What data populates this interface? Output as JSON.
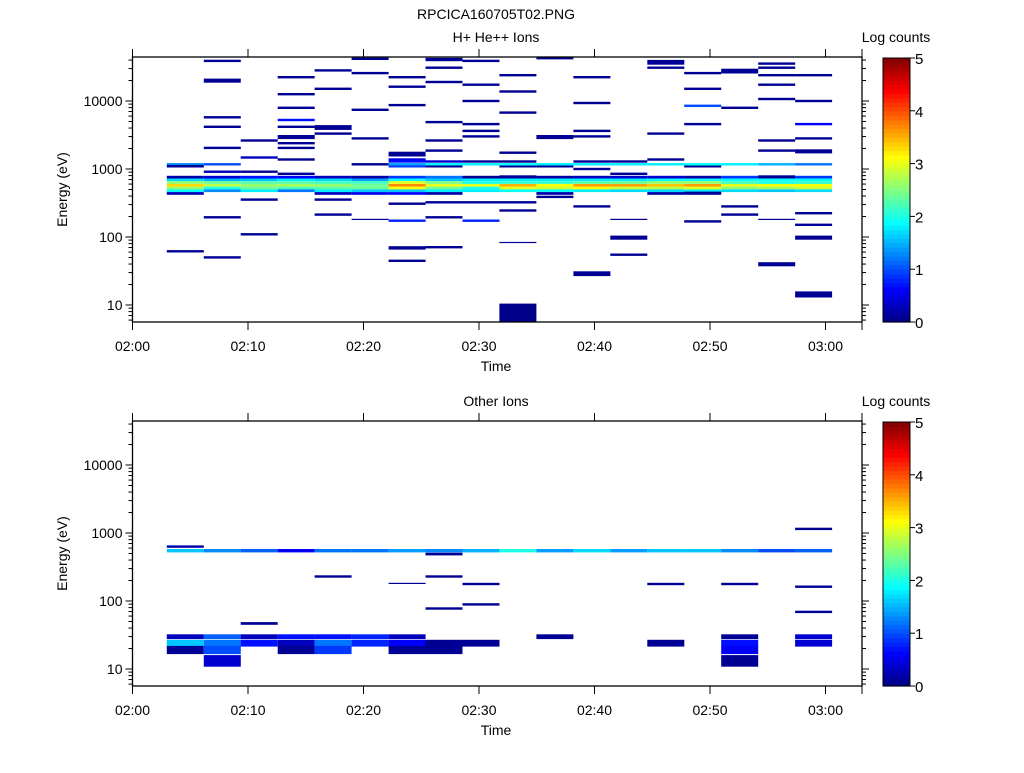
{
  "title": "RPCICA160705T02.PNG",
  "colormap": "jet",
  "chart_data": [
    {
      "type": "heatmap",
      "title": "H+ He++ Ions",
      "xlabel": "Time",
      "ylabel": "Energy (eV)",
      "colorbar_label": "Log counts",
      "colorbar_range": [
        0,
        5
      ],
      "colorbar_ticks": [
        "0",
        "1",
        "2",
        "3",
        "4",
        "5"
      ],
      "x_ticks": [
        "02:00",
        "02:10",
        "02:20",
        "02:30",
        "02:40",
        "02:50",
        "03:00"
      ],
      "y_ticks": [
        "10",
        "100",
        "1000",
        "10000"
      ],
      "y_scale": "log",
      "ylim_log10_eV": [
        0.75,
        4.65
      ],
      "xlim_minutes_after_0200": [
        0,
        63.2
      ],
      "time_bins": {
        "start_minute": 2.97,
        "width_minutes": 3.2,
        "count": 18
      },
      "band": {
        "log10_energy": [
          2.88,
          2.84,
          2.8,
          2.76,
          2.72,
          2.68,
          2.64
        ],
        "values_by_column": [
          [
            0.2,
            1.7,
            2.6,
            3.3,
            2.6,
            1.9,
            0.3
          ],
          [
            0.4,
            1.5,
            2.4,
            2.8,
            2.0,
            1.3,
            null
          ],
          [
            0.7,
            1.6,
            2.3,
            2.6,
            2.4,
            1.8,
            null
          ],
          [
            0.6,
            1.8,
            2.3,
            2.7,
            2.2,
            1.2,
            null
          ],
          [
            0.3,
            1.7,
            2.2,
            2.6,
            2.3,
            1.8,
            0.3
          ],
          [
            0.2,
            1.4,
            2.2,
            2.4,
            2.4,
            1.6,
            0.5
          ],
          [
            0.9,
            1.9,
            3.0,
            3.7,
            3.1,
            1.6,
            0.6
          ],
          [
            1.2,
            1.6,
            2.5,
            3.0,
            2.4,
            1.8,
            0.2
          ],
          [
            0.1,
            1.8,
            2.0,
            3.0,
            2.0,
            1.8,
            null
          ],
          [
            0.2,
            1.8,
            2.1,
            3.5,
            3.0,
            1.9,
            null
          ],
          [
            0.2,
            1.8,
            2.1,
            3.1,
            2.9,
            1.9,
            0.2
          ],
          [
            0.3,
            1.8,
            2.3,
            3.6,
            3.1,
            1.8,
            null
          ],
          [
            0.4,
            1.8,
            2.4,
            3.6,
            2.9,
            1.7,
            null
          ],
          [
            0.4,
            1.9,
            2.6,
            3.4,
            2.8,
            1.7,
            0.2
          ],
          [
            0.2,
            1.9,
            2.6,
            3.6,
            3.0,
            1.8,
            0.2
          ],
          [
            0.9,
            1.9,
            2.2,
            3.0,
            2.6,
            1.7,
            null
          ],
          [
            0.2,
            1.9,
            2.0,
            3.1,
            2.7,
            1.6,
            null
          ],
          [
            0.9,
            1.9,
            2.1,
            3.1,
            2.9,
            1.7,
            null
          ]
        ]
      },
      "cells_col_log10E_value_width": [
        [
          0,
          3.07,
          1.3
        ],
        [
          0,
          3.04,
          0.1
        ],
        [
          0,
          1.79,
          0.1
        ],
        [
          1,
          4.59,
          0.1
        ],
        [
          1,
          4.3,
          0.1,
          0.06
        ],
        [
          1,
          3.76,
          0.1
        ],
        [
          1,
          3.62,
          0.1
        ],
        [
          1,
          3.31,
          0.1
        ],
        [
          1,
          3.07,
          1.0
        ],
        [
          1,
          2.96,
          0.3
        ],
        [
          1,
          2.29,
          0.1
        ],
        [
          1,
          1.7,
          0.1
        ],
        [
          2,
          3.42,
          0.1
        ],
        [
          2,
          3.17,
          0.3
        ],
        [
          2,
          2.96,
          0.1
        ],
        [
          2,
          2.55,
          0.1
        ],
        [
          2,
          2.04,
          0.1
        ],
        [
          3,
          4.35,
          0.1
        ],
        [
          3,
          4.1,
          0.1
        ],
        [
          3,
          3.9,
          0.1
        ],
        [
          3,
          3.72,
          0.7
        ],
        [
          3,
          3.62,
          0.1
        ],
        [
          3,
          3.47,
          0.1,
          0.06
        ],
        [
          3,
          3.38,
          0.1
        ],
        [
          3,
          3.31,
          0.1
        ],
        [
          3,
          3.14,
          0.1
        ],
        [
          3,
          2.93,
          0.1
        ],
        [
          4,
          4.45,
          0.1
        ],
        [
          4,
          4.18,
          0.1
        ],
        [
          4,
          3.61,
          0.1,
          0.07
        ],
        [
          4,
          3.52,
          0.1
        ],
        [
          4,
          2.55,
          0.1
        ],
        [
          4,
          2.33,
          0.1
        ],
        [
          5,
          4.62,
          0.1
        ],
        [
          5,
          4.41,
          0.1
        ],
        [
          5,
          3.87,
          0.1
        ],
        [
          5,
          3.45,
          0.1
        ],
        [
          5,
          3.07,
          0.1
        ],
        [
          5,
          2.26,
          0.1,
          0.015
        ],
        [
          6,
          4.35,
          0.1
        ],
        [
          6,
          4.21,
          0.1
        ],
        [
          6,
          3.94,
          0.1
        ],
        [
          6,
          3.22,
          0.1,
          0.07
        ],
        [
          6,
          3.14,
          0.5
        ],
        [
          6,
          3.11,
          0.7
        ],
        [
          6,
          3.04,
          0.9
        ],
        [
          6,
          2.49,
          0.1
        ],
        [
          6,
          2.24,
          0.8
        ],
        [
          6,
          1.84,
          0.1,
          0.05
        ],
        [
          6,
          1.65,
          0.1
        ],
        [
          7,
          4.61,
          0.1,
          0.05
        ],
        [
          7,
          4.49,
          0.1
        ],
        [
          7,
          4.28,
          0.1
        ],
        [
          7,
          3.69,
          0.1
        ],
        [
          7,
          3.42,
          0.1
        ],
        [
          7,
          3.27,
          0.1
        ],
        [
          7,
          3.11,
          0.4
        ],
        [
          7,
          3.04,
          0.1
        ],
        [
          7,
          2.51,
          0.1
        ],
        [
          7,
          2.29,
          0.1
        ],
        [
          7,
          1.85,
          0.1
        ],
        [
          8,
          4.59,
          0.1
        ],
        [
          8,
          4.24,
          0.1
        ],
        [
          8,
          4.0,
          0.1
        ],
        [
          8,
          3.66,
          0.1
        ],
        [
          8,
          3.56,
          0.1
        ],
        [
          8,
          3.48,
          0.1
        ],
        [
          8,
          3.11,
          0.1
        ],
        [
          8,
          2.51,
          0.1
        ],
        [
          8,
          2.24,
          0.8
        ],
        [
          9,
          4.38,
          0.1
        ],
        [
          9,
          4.14,
          0.1
        ],
        [
          9,
          3.83,
          0.1
        ],
        [
          9,
          3.24,
          0.1
        ],
        [
          9,
          3.11,
          0.1
        ],
        [
          9,
          3.04,
          0.1
        ],
        [
          9,
          2.89,
          0.1
        ],
        [
          9,
          2.51,
          0.1
        ],
        [
          9,
          2.39,
          0.1
        ],
        [
          9,
          1.92,
          0.1,
          0.015
        ],
        [
          9,
          0.885,
          0.05,
          0.27
        ],
        [
          10,
          4.63,
          0.1
        ],
        [
          10,
          3.47,
          0.1,
          0.06
        ],
        [
          10,
          3.04,
          0.1
        ],
        [
          10,
          2.59,
          0.1
        ],
        [
          11,
          4.35,
          0.1
        ],
        [
          11,
          3.97,
          0.1
        ],
        [
          11,
          3.56,
          0.1
        ],
        [
          11,
          3.48,
          0.1
        ],
        [
          11,
          3.11,
          0.1
        ],
        [
          11,
          3.0,
          0.1
        ],
        [
          11,
          2.45,
          0.1
        ],
        [
          11,
          1.46,
          0.1,
          0.07
        ],
        [
          12,
          3.11,
          0.1
        ],
        [
          12,
          2.93,
          0.1
        ],
        [
          12,
          2.26,
          0.1,
          0.015
        ],
        [
          12,
          1.99,
          0.1,
          0.06
        ],
        [
          12,
          1.74,
          0.1
        ],
        [
          13,
          4.57,
          0.1,
          0.07
        ],
        [
          13,
          4.49,
          0.1
        ],
        [
          13,
          3.52,
          0.1
        ],
        [
          13,
          3.14,
          0.1
        ],
        [
          14,
          4.41,
          0.1
        ],
        [
          14,
          4.18,
          0.1
        ],
        [
          14,
          3.93,
          1.0
        ],
        [
          14,
          3.66,
          0.1
        ],
        [
          14,
          3.04,
          0.1
        ],
        [
          14,
          2.65,
          0.1
        ],
        [
          14,
          2.23,
          0.1
        ],
        [
          15,
          4.44,
          0.1,
          0.07
        ],
        [
          15,
          3.9,
          0.1
        ],
        [
          15,
          2.45,
          0.1
        ],
        [
          15,
          2.33,
          0.1
        ],
        [
          16,
          4.55,
          0.1
        ],
        [
          16,
          4.49,
          0.1
        ],
        [
          16,
          4.38,
          0.1
        ],
        [
          16,
          4.24,
          0.1
        ],
        [
          16,
          4.03,
          0.1
        ],
        [
          16,
          3.42,
          0.1
        ],
        [
          16,
          3.27,
          0.1
        ],
        [
          16,
          2.89,
          0.1
        ],
        [
          16,
          2.26,
          0.1,
          0.015
        ],
        [
          16,
          1.6,
          0.1,
          0.06
        ],
        [
          17,
          4.38,
          0.1
        ],
        [
          17,
          4.0,
          0.1
        ],
        [
          17,
          3.66,
          0.6
        ],
        [
          17,
          3.45,
          0.1
        ],
        [
          17,
          3.26,
          0.1,
          0.06
        ],
        [
          17,
          2.35,
          0.1
        ],
        [
          17,
          2.18,
          0.1
        ],
        [
          17,
          1.99,
          0.1,
          0.06
        ],
        [
          17,
          1.155,
          0.1,
          0.09
        ],
        [
          6,
          3.07,
          1.4
        ],
        [
          7,
          3.07,
          1.8
        ],
        [
          8,
          3.07,
          1.8
        ],
        [
          9,
          3.07,
          1.9
        ],
        [
          10,
          3.07,
          1.8
        ],
        [
          11,
          3.07,
          1.8
        ],
        [
          12,
          3.07,
          1.8
        ],
        [
          13,
          3.07,
          1.8
        ],
        [
          14,
          3.07,
          1.9
        ],
        [
          15,
          3.07,
          1.8
        ],
        [
          16,
          3.07,
          1.5
        ],
        [
          17,
          3.07,
          1.2
        ]
      ]
    },
    {
      "type": "heatmap",
      "title": "Other Ions",
      "xlabel": "Time",
      "ylabel": "Energy (eV)",
      "colorbar_label": "Log counts",
      "colorbar_range": [
        0,
        5
      ],
      "colorbar_ticks": [
        "0",
        "1",
        "2",
        "3",
        "4",
        "5"
      ],
      "x_ticks": [
        "02:00",
        "02:10",
        "02:20",
        "02:30",
        "02:40",
        "02:50",
        "03:00"
      ],
      "y_ticks": [
        "10",
        "100",
        "1000",
        "10000"
      ],
      "y_scale": "log",
      "ylim_log10_eV": [
        0.75,
        4.65
      ],
      "xlim_minutes_after_0200": [
        0,
        63.2
      ],
      "time_bins": {
        "start_minute": 2.97,
        "width_minutes": 3.2,
        "count": 18
      },
      "band": {
        "log10_energy": [
          2.74
        ],
        "values_by_column": [
          [
            1.6
          ],
          [
            1.3
          ],
          [
            1.1
          ],
          [
            0.6
          ],
          [
            1.2
          ],
          [
            1.2
          ],
          [
            1.4
          ],
          [
            1.3
          ],
          [
            1.5
          ],
          [
            2.0
          ],
          [
            1.4
          ],
          [
            1.7
          ],
          [
            1.4
          ],
          [
            1.6
          ],
          [
            1.6
          ],
          [
            1.3
          ],
          [
            1.0
          ],
          [
            1.1
          ]
        ]
      },
      "cells_col_log10E_value_width": [
        [
          0,
          2.8,
          0.2
        ],
        [
          7,
          2.69,
          0.1,
          0.04
        ],
        [
          4,
          2.36,
          0.1
        ],
        [
          6,
          2.26,
          0.1,
          0.015
        ],
        [
          7,
          2.36,
          0.1
        ],
        [
          7,
          1.89,
          0.1
        ],
        [
          8,
          2.25,
          0.1
        ],
        [
          8,
          1.95,
          0.1
        ],
        [
          13,
          2.25,
          0.1
        ],
        [
          15,
          2.25,
          0.1
        ],
        [
          17,
          3.06,
          0.1
        ],
        [
          17,
          2.21,
          0.1
        ],
        [
          17,
          1.84,
          0.1
        ],
        [
          2,
          1.67,
          0.1,
          0.04
        ],
        [
          0,
          1.475,
          0.3,
          0.07
        ],
        [
          0,
          1.38,
          1.6,
          0.1
        ],
        [
          0,
          1.28,
          0.1,
          0.12
        ],
        [
          1,
          1.475,
          1.1,
          0.07
        ],
        [
          1,
          1.38,
          1.2,
          0.1
        ],
        [
          1,
          1.28,
          1.0,
          0.12
        ],
        [
          1,
          1.12,
          0.4,
          0.17
        ],
        [
          2,
          1.475,
          0.3,
          0.07
        ],
        [
          2,
          1.38,
          0.7,
          0.1
        ],
        [
          3,
          1.475,
          0.7,
          0.07
        ],
        [
          3,
          1.38,
          0.3,
          0.1
        ],
        [
          3,
          1.28,
          0.1,
          0.12
        ],
        [
          4,
          1.475,
          0.7,
          0.07
        ],
        [
          4,
          1.38,
          1.2,
          0.1
        ],
        [
          4,
          1.28,
          0.9,
          0.12
        ],
        [
          5,
          1.475,
          0.8,
          0.07
        ],
        [
          5,
          1.38,
          0.8,
          0.1
        ],
        [
          6,
          1.475,
          0.3,
          0.07
        ],
        [
          6,
          1.38,
          0.6,
          0.1
        ],
        [
          6,
          1.28,
          0.1,
          0.12
        ],
        [
          7,
          1.38,
          0.1,
          0.1
        ],
        [
          7,
          1.28,
          0.1,
          0.12
        ],
        [
          8,
          1.38,
          0.1,
          0.1
        ],
        [
          10,
          1.475,
          0.1,
          0.07
        ],
        [
          13,
          1.38,
          0.1,
          0.1
        ],
        [
          15,
          1.475,
          0.1,
          0.07
        ],
        [
          15,
          1.38,
          0.7,
          0.1
        ],
        [
          15,
          1.28,
          0.6,
          0.12
        ],
        [
          15,
          1.12,
          0.1,
          0.17
        ],
        [
          17,
          1.475,
          0.4,
          0.07
        ],
        [
          17,
          1.38,
          0.4,
          0.1
        ]
      ]
    }
  ]
}
